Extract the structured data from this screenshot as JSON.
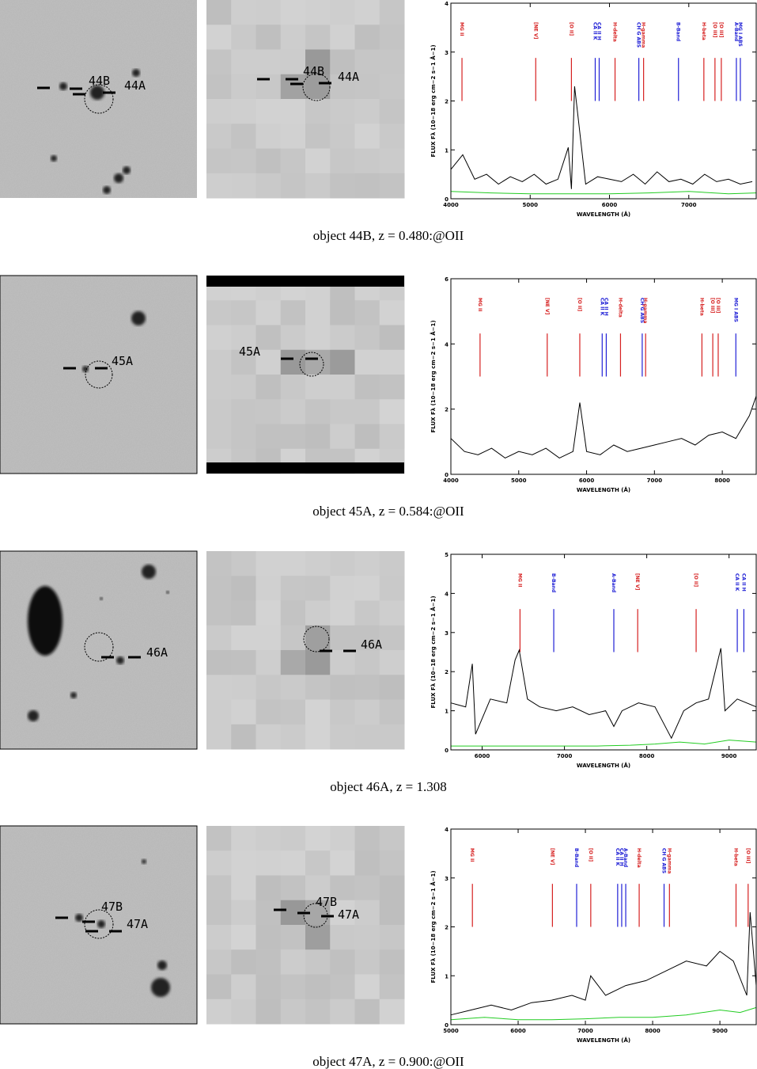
{
  "panels": [
    {
      "caption": "object 44B, z = 0.480:@OII",
      "stamps": [
        {
          "labels": [
            "44B",
            "44A"
          ]
        },
        {
          "labels": [
            "44B",
            "44A"
          ]
        }
      ],
      "chart_data": {
        "type": "line",
        "x_label": "WAVELENGTH (Å)",
        "y_label": "FLUX Fλ (10−18 erg cm−2 s−1 Å−1)",
        "xlim": [
          4000,
          7850
        ],
        "ylim": [
          0,
          4
        ],
        "xticks": [
          4000,
          5000,
          6000,
          7000
        ],
        "yticks": [
          0,
          1,
          2,
          3,
          4
        ],
        "lines": [
          {
            "label": "MG II",
            "x": 4140,
            "color": "#d62020"
          },
          {
            "label": "[NE V]",
            "x": 5070,
            "color": "#d62020"
          },
          {
            "label": "[O II]",
            "x": 5520,
            "color": "#d62020"
          },
          {
            "label": "CA II K",
            "x": 5820,
            "color": "#2020d6"
          },
          {
            "label": "CA II H",
            "x": 5870,
            "color": "#2020d6"
          },
          {
            "label": "H-delta",
            "x": 6070,
            "color": "#d62020"
          },
          {
            "label": "CH G ABS",
            "x": 6370,
            "color": "#2020d6"
          },
          {
            "label": "H-gamma",
            "x": 6430,
            "color": "#d62020"
          },
          {
            "label": "B-Band",
            "x": 6870,
            "color": "#2020d6"
          },
          {
            "label": "H-beta",
            "x": 7190,
            "color": "#d62020"
          },
          {
            "label": "[O III]",
            "x": 7330,
            "color": "#d62020"
          },
          {
            "label": "[O III]",
            "x": 7410,
            "color": "#d62020"
          },
          {
            "label": "A-Band",
            "x": 7600,
            "color": "#2020d6"
          },
          {
            "label": "MG I ABS",
            "x": 7650,
            "color": "#2020d6"
          }
        ],
        "series": [
          {
            "color": "#000000",
            "x": [
              4000,
              4150,
              4300,
              4450,
              4600,
              4750,
              4900,
              5050,
              5200,
              5350,
              5480,
              5520,
              5560,
              5700,
              5850,
              6000,
              6150,
              6300,
              6450,
              6600,
              6750,
              6900,
              7050,
              7200,
              7350,
              7500,
              7650,
              7800
            ],
            "values": [
              0.6,
              0.9,
              0.4,
              0.5,
              0.3,
              0.45,
              0.35,
              0.5,
              0.3,
              0.4,
              1.05,
              0.2,
              2.3,
              0.3,
              0.45,
              0.4,
              0.35,
              0.5,
              0.3,
              0.55,
              0.35,
              0.4,
              0.3,
              0.5,
              0.35,
              0.4,
              0.3,
              0.35
            ]
          },
          {
            "color": "#22cc22",
            "x": [
              4000,
              4500,
              5000,
              5500,
              6000,
              6500,
              7000,
              7500,
              7850
            ],
            "values": [
              0.15,
              0.12,
              0.1,
              0.1,
              0.1,
              0.12,
              0.15,
              0.1,
              0.12
            ]
          }
        ]
      }
    },
    {
      "caption": "object 45A, z = 0.584:@OII",
      "stamps": [
        {
          "labels": [
            "45A"
          ]
        },
        {
          "labels": [
            "45A"
          ]
        }
      ],
      "chart_data": {
        "type": "line",
        "x_label": "WAVELENGTH (Å)",
        "y_label": "FLUX Fλ (10−18 erg cm−2 s−1 Å−1)",
        "xlim": [
          4000,
          8500
        ],
        "ylim": [
          0,
          6
        ],
        "xticks": [
          4000,
          5000,
          6000,
          7000,
          8000
        ],
        "yticks": [
          0,
          2,
          4,
          6
        ],
        "lines": [
          {
            "label": "MG II",
            "x": 4430,
            "color": "#d62020"
          },
          {
            "label": "[NE V]",
            "x": 5420,
            "color": "#d62020"
          },
          {
            "label": "[O II]",
            "x": 5900,
            "color": "#d62020"
          },
          {
            "label": "CA II K",
            "x": 6230,
            "color": "#2020d6"
          },
          {
            "label": "CA II H",
            "x": 6290,
            "color": "#2020d6"
          },
          {
            "label": "H-delta",
            "x": 6500,
            "color": "#d62020"
          },
          {
            "label": "CH G ABS",
            "x": 6820,
            "color": "#2020d6"
          },
          {
            "label": "H-gamma",
            "x": 6870,
            "color": "#d62020"
          },
          {
            "label": "H-beta",
            "x": 7700,
            "color": "#d62020"
          },
          {
            "label": "[O III]",
            "x": 7860,
            "color": "#d62020"
          },
          {
            "label": "[O III]",
            "x": 7940,
            "color": "#d62020"
          },
          {
            "label": "MG I ABS",
            "x": 8200,
            "color": "#2020d6"
          }
        ],
        "series": [
          {
            "color": "#000000",
            "x": [
              4000,
              4200,
              4400,
              4600,
              4800,
              5000,
              5200,
              5400,
              5600,
              5800,
              5900,
              6000,
              6200,
              6400,
              6600,
              6800,
              7000,
              7200,
              7400,
              7600,
              7800,
              8000,
              8200,
              8400,
              8500
            ],
            "values": [
              1.1,
              0.7,
              0.6,
              0.8,
              0.5,
              0.7,
              0.6,
              0.8,
              0.5,
              0.7,
              2.2,
              0.7,
              0.6,
              0.9,
              0.7,
              0.8,
              0.9,
              1.0,
              1.1,
              0.9,
              1.2,
              1.3,
              1.1,
              1.8,
              2.4
            ]
          }
        ]
      }
    },
    {
      "caption": "object 46A, z = 1.308",
      "stamps": [
        {
          "labels": [
            "46A"
          ]
        },
        {
          "labels": [
            "46A"
          ]
        }
      ],
      "chart_data": {
        "type": "line",
        "x_label": "WAVELENGTH (Å)",
        "y_label": "FLUX Fλ (10−18 erg cm−2 s−1 Å−1)",
        "xlim": [
          5620,
          9330
        ],
        "ylim": [
          0,
          5
        ],
        "xticks": [
          6000,
          7000,
          8000,
          9000
        ],
        "yticks": [
          0,
          1,
          2,
          3,
          4,
          5
        ],
        "lines": [
          {
            "label": "MG II",
            "x": 6460,
            "color": "#d62020"
          },
          {
            "label": "B-Band",
            "x": 6870,
            "color": "#2020d6"
          },
          {
            "label": "A-Band",
            "x": 7600,
            "color": "#2020d6"
          },
          {
            "label": "[NE V]",
            "x": 7890,
            "color": "#d62020"
          },
          {
            "label": "[O II]",
            "x": 8600,
            "color": "#d62020"
          },
          {
            "label": "CA II K",
            "x": 9100,
            "color": "#2020d6"
          },
          {
            "label": "CA II H",
            "x": 9180,
            "color": "#2020d6"
          }
        ],
        "series": [
          {
            "color": "#000000",
            "x": [
              5620,
              5800,
              5880,
              5920,
              6100,
              6300,
              6400,
              6450,
              6550,
              6700,
              6900,
              7100,
              7300,
              7500,
              7600,
              7700,
              7900,
              8100,
              8250,
              8300,
              8450,
              8600,
              8750,
              8900,
              8950,
              9100,
              9330
            ],
            "values": [
              1.2,
              1.1,
              2.2,
              0.4,
              1.3,
              1.2,
              2.3,
              2.55,
              1.3,
              1.1,
              1.0,
              1.1,
              0.9,
              1.0,
              0.6,
              1.0,
              1.2,
              1.1,
              0.5,
              0.3,
              1.0,
              1.2,
              1.3,
              2.6,
              1.0,
              1.3,
              1.1
            ]
          },
          {
            "color": "#22cc22",
            "x": [
              5620,
              6200,
              6800,
              7400,
              7800,
              8100,
              8400,
              8700,
              9000,
              9330
            ],
            "values": [
              0.1,
              0.1,
              0.1,
              0.1,
              0.12,
              0.15,
              0.2,
              0.15,
              0.25,
              0.2
            ]
          }
        ]
      }
    },
    {
      "caption": "object 47A, z = 0.900:@OII",
      "stamps": [
        {
          "labels": [
            "47B",
            "47A"
          ]
        },
        {
          "labels": [
            "47B",
            "47A"
          ]
        }
      ],
      "chart_data": {
        "type": "line",
        "x_label": "WAVELENGTH (Å)",
        "y_label": "FLUX Fλ (10−18 erg cm−2 s−1 Å−1)",
        "xlim": [
          5000,
          9540
        ],
        "ylim": [
          0,
          4
        ],
        "xticks": [
          5000,
          6000,
          7000,
          8000,
          9000
        ],
        "yticks": [
          0,
          1,
          2,
          3,
          4
        ],
        "lines": [
          {
            "label": "MG II",
            "x": 5320,
            "color": "#d62020"
          },
          {
            "label": "[NE V]",
            "x": 6510,
            "color": "#d62020"
          },
          {
            "label": "B-Band",
            "x": 6870,
            "color": "#2020d6"
          },
          {
            "label": "[O II]",
            "x": 7080,
            "color": "#d62020"
          },
          {
            "label": "CA II K",
            "x": 7480,
            "color": "#2020d6"
          },
          {
            "label": "CA II H",
            "x": 7540,
            "color": "#2020d6"
          },
          {
            "label": "A-Band",
            "x": 7600,
            "color": "#2020d6"
          },
          {
            "label": "H-delta",
            "x": 7800,
            "color": "#d62020"
          },
          {
            "label": "CH G ABS",
            "x": 8170,
            "color": "#2020d6"
          },
          {
            "label": "H-gamma",
            "x": 8250,
            "color": "#d62020"
          },
          {
            "label": "H-beta",
            "x": 9240,
            "color": "#d62020"
          },
          {
            "label": "[O III]",
            "x": 9420,
            "color": "#d62020"
          }
        ],
        "series": [
          {
            "color": "#000000",
            "x": [
              5000,
              5300,
              5600,
              5900,
              6200,
              6500,
              6800,
              7000,
              7080,
              7300,
              7600,
              7900,
              8200,
              8500,
              8800,
              9000,
              9200,
              9400,
              9450,
              9540
            ],
            "values": [
              0.2,
              0.3,
              0.4,
              0.3,
              0.45,
              0.5,
              0.6,
              0.5,
              1.0,
              0.6,
              0.8,
              0.9,
              1.1,
              1.3,
              1.2,
              1.5,
              1.3,
              0.6,
              2.3,
              0.8
            ]
          },
          {
            "color": "#22cc22",
            "x": [
              5000,
              5500,
              6000,
              6500,
              7000,
              7500,
              8000,
              8500,
              9000,
              9300,
              9540
            ],
            "values": [
              0.1,
              0.15,
              0.1,
              0.1,
              0.12,
              0.15,
              0.15,
              0.2,
              0.3,
              0.25,
              0.35
            ]
          }
        ]
      }
    }
  ]
}
